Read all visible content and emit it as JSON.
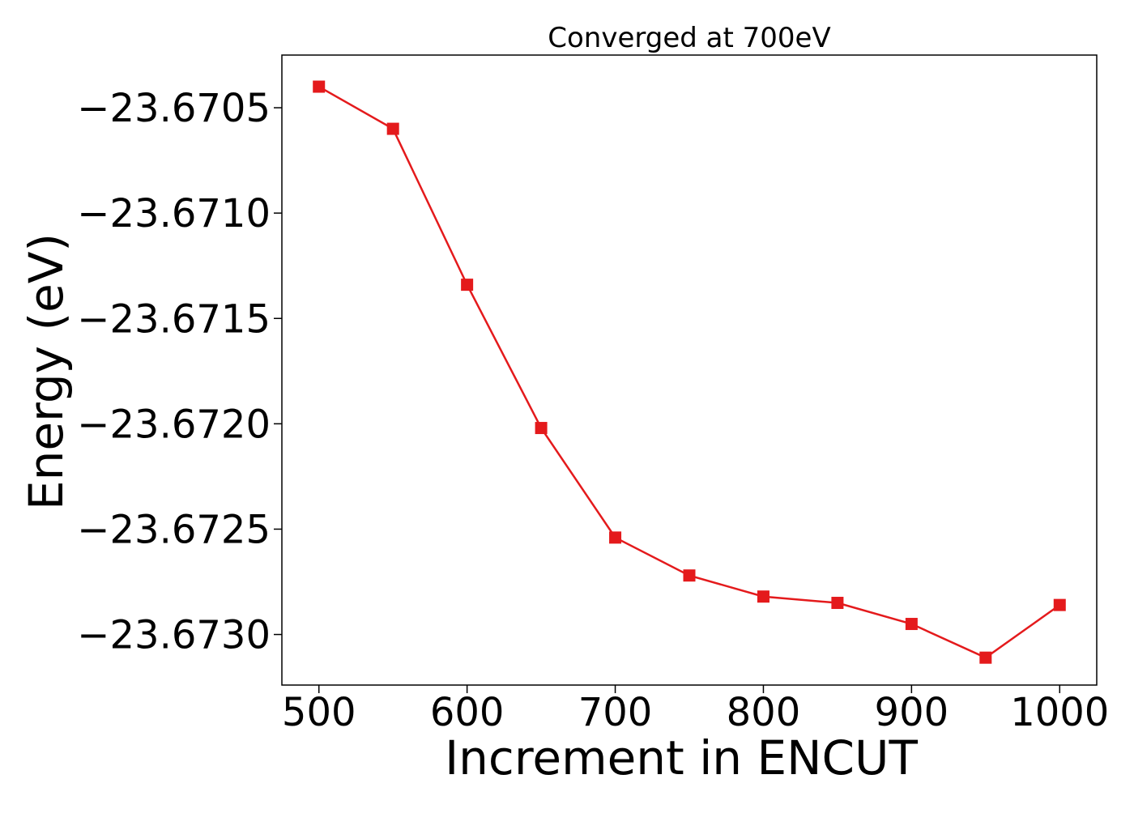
{
  "chart_data": {
    "type": "line",
    "title": "Converged at 700eV",
    "xlabel": "Increment in ENCUT",
    "ylabel": "Energy (eV)",
    "xlim": [
      475,
      1025
    ],
    "ylim": [
      -23.67324,
      -23.67025
    ],
    "x_ticks": [
      500,
      600,
      700,
      800,
      900,
      1000
    ],
    "y_ticks": [
      -23.6705,
      -23.671,
      -23.6715,
      -23.672,
      -23.6725,
      -23.673
    ],
    "x_tick_labels": [
      "500",
      "600",
      "700",
      "800",
      "900",
      "1000"
    ],
    "y_tick_labels": [
      "−23.6705",
      "−23.6710",
      "−23.6715",
      "−23.6720",
      "−23.6725",
      "−23.6730"
    ],
    "grid": false,
    "x": [
      500,
      550,
      600,
      650,
      700,
      750,
      800,
      850,
      900,
      950,
      1000
    ],
    "series": [
      {
        "values": [
          -23.6704,
          -23.6706,
          -23.67134,
          -23.67202,
          -23.67254,
          -23.67272,
          -23.67282,
          -23.67285,
          -23.67295,
          -23.67311,
          -23.67286
        ],
        "color": "#e41a1c",
        "marker": "square"
      }
    ]
  }
}
